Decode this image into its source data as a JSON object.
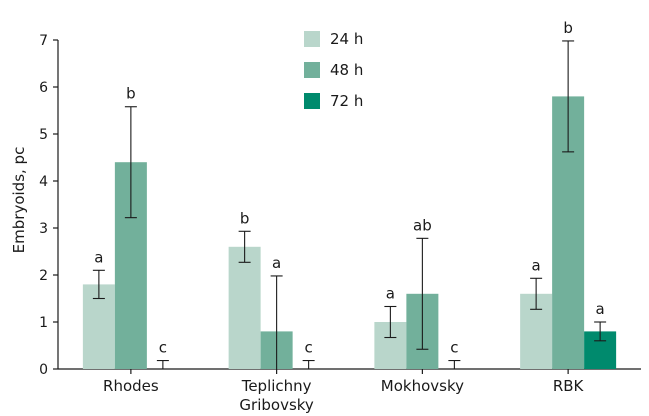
{
  "chart_data": {
    "type": "bar",
    "title": "",
    "xlabel": "",
    "ylabel": "Embryoids, pc",
    "ylim": [
      0,
      7
    ],
    "yticks": [
      0,
      1,
      2,
      3,
      4,
      5,
      6,
      7
    ],
    "grid": false,
    "legend_position": "top-center",
    "categories": [
      [
        "Rhodes"
      ],
      [
        "Teplichny",
        "Gribovsky"
      ],
      [
        "Mokhovsky"
      ],
      [
        "RBK"
      ]
    ],
    "series": [
      {
        "name": "24 h",
        "color": "#b9d6cb",
        "values": [
          1.8,
          2.6,
          1.0,
          1.6
        ],
        "errors": [
          0.3,
          0.33,
          0.33,
          0.33
        ],
        "letters": [
          "a",
          "b",
          "a",
          "a"
        ]
      },
      {
        "name": "48 h",
        "color": "#72b09b",
        "values": [
          4.4,
          0.8,
          1.6,
          5.8
        ],
        "errors": [
          1.18,
          1.18,
          1.18,
          1.18
        ],
        "letters": [
          "b",
          "a",
          "ab",
          "b"
        ]
      },
      {
        "name": "72 h",
        "color": "#008a6d",
        "values": [
          0,
          0,
          0,
          0.8
        ],
        "errors": [
          0.18,
          0.18,
          0.18,
          0.2
        ],
        "letters": [
          "c",
          "c",
          "c",
          "a"
        ]
      }
    ]
  }
}
